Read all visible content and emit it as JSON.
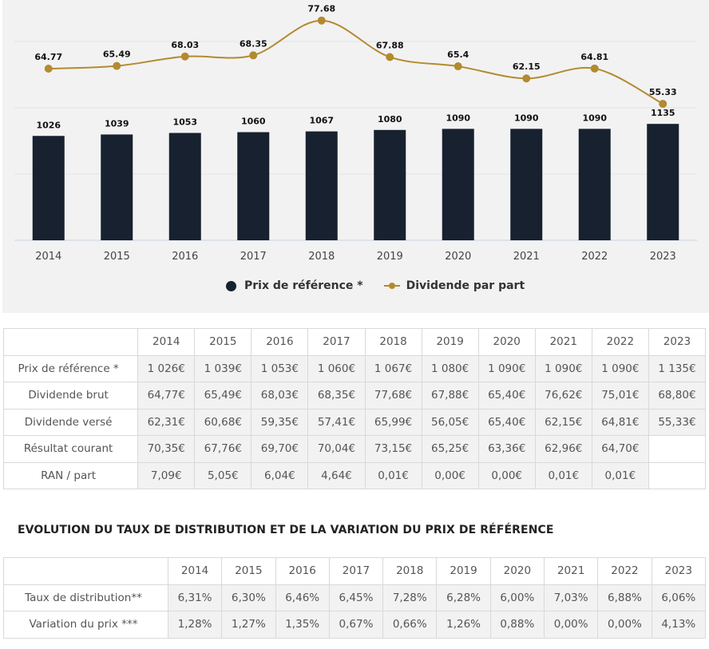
{
  "chart_data": {
    "type": "bar",
    "categories": [
      "2014",
      "2015",
      "2016",
      "2017",
      "2018",
      "2019",
      "2020",
      "2021",
      "2022",
      "2023"
    ],
    "series": [
      {
        "name": "Prix de référence *",
        "type": "bar",
        "color": "#17212f",
        "values": [
          1026,
          1039,
          1053,
          1060,
          1067,
          1080,
          1090,
          1090,
          1090,
          1135
        ]
      },
      {
        "name": "Dividende par part",
        "type": "line",
        "color": "#b38a2f",
        "values": [
          64.77,
          65.49,
          68.03,
          68.35,
          77.68,
          67.88,
          65.4,
          62.15,
          64.81,
          55.33
        ]
      }
    ],
    "grid": true,
    "legend_position": "bottom"
  },
  "legend": {
    "bar_label": "Prix de référence *",
    "line_label": "Dividende par part"
  },
  "table1": {
    "headers": [
      "",
      "2014",
      "2015",
      "2016",
      "2017",
      "2018",
      "2019",
      "2020",
      "2021",
      "2022",
      "2023"
    ],
    "rows": [
      {
        "label": "Prix de référence *",
        "cells": [
          "1 026€",
          "1 039€",
          "1 053€",
          "1 060€",
          "1 067€",
          "1 080€",
          "1 090€",
          "1 090€",
          "1 090€",
          "1 135€"
        ]
      },
      {
        "label": "Dividende brut",
        "cells": [
          "64,77€",
          "65,49€",
          "68,03€",
          "68,35€",
          "77,68€",
          "67,88€",
          "65,40€",
          "76,62€",
          "75,01€",
          "68,80€"
        ]
      },
      {
        "label": "Dividende versé",
        "cells": [
          "62,31€",
          "60,68€",
          "59,35€",
          "57,41€",
          "65,99€",
          "56,05€",
          "65,40€",
          "62,15€",
          "64,81€",
          "55,33€"
        ]
      },
      {
        "label": "Résultat courant",
        "cells": [
          "70,35€",
          "67,76€",
          "69,70€",
          "70,04€",
          "73,15€",
          "65,25€",
          "63,36€",
          "62,96€",
          "64,70€",
          ""
        ]
      },
      {
        "label": "RAN / part",
        "cells": [
          "7,09€",
          "5,05€",
          "6,04€",
          "4,64€",
          "0,01€",
          "0,00€",
          "0,00€",
          "0,01€",
          "0,01€",
          ""
        ]
      }
    ]
  },
  "section_title": "EVOLUTION DU TAUX DE DISTRIBUTION ET DE LA VARIATION DU PRIX DE RÉFÉRENCE",
  "table2": {
    "headers": [
      "",
      "2014",
      "2015",
      "2016",
      "2017",
      "2018",
      "2019",
      "2020",
      "2021",
      "2022",
      "2023"
    ],
    "rows": [
      {
        "label": "Taux de distribution**",
        "cells": [
          "6,31%",
          "6,30%",
          "6,46%",
          "6,45%",
          "7,28%",
          "6,28%",
          "6,00%",
          "7,03%",
          "6,88%",
          "6,06%"
        ]
      },
      {
        "label": "Variation du prix ***",
        "cells": [
          "1,28%",
          "1,27%",
          "1,35%",
          "0,67%",
          "0,66%",
          "1,26%",
          "0,88%",
          "0,00%",
          "0,00%",
          "4,13%"
        ]
      }
    ]
  }
}
